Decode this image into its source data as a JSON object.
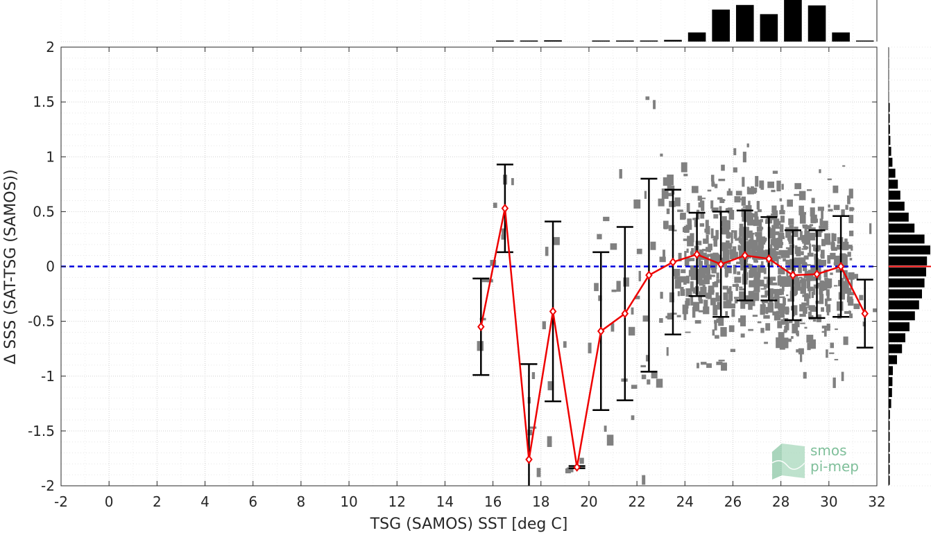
{
  "chart_data": {
    "type": "scatter",
    "xlabel": "TSG (SAMOS) SST [deg C]",
    "ylabel": "Δ SSS (SAT-TSG (SAMOS))",
    "xlim": [
      -2,
      32
    ],
    "ylim": [
      -2,
      2
    ],
    "x_ticks": [
      "-2",
      "0",
      "2",
      "4",
      "6",
      "8",
      "10",
      "12",
      "14",
      "16",
      "18",
      "20",
      "22",
      "24",
      "26",
      "28",
      "30",
      "32"
    ],
    "y_ticks": [
      "2",
      "1.5",
      "1",
      "0.5",
      "0",
      "-0.5",
      "-1",
      "-1.5",
      "-2"
    ],
    "grid": true,
    "zero_line": {
      "y": 0,
      "color": "#0000dd",
      "style": "dashed"
    },
    "binned_mean": {
      "color": "#ee0000",
      "x": [
        15.5,
        16.5,
        17.5,
        18.5,
        19.5,
        20.5,
        21.5,
        22.5,
        23.5,
        24.5,
        25.5,
        26.5,
        27.5,
        28.5,
        29.5,
        30.5,
        31.5
      ],
      "mean": [
        -0.55,
        0.53,
        -1.76,
        -0.41,
        -1.83,
        -0.59,
        -0.43,
        -0.08,
        0.04,
        0.11,
        0.02,
        0.1,
        0.07,
        -0.08,
        -0.07,
        0.0,
        -0.43
      ],
      "std": [
        0.44,
        0.4,
        0.87,
        0.82,
        0.01,
        0.72,
        0.79,
        0.88,
        0.66,
        0.38,
        0.48,
        0.41,
        0.38,
        0.41,
        0.4,
        0.46,
        0.31
      ]
    },
    "scatter_color": "#808080",
    "top_histogram": {
      "x": [
        16.5,
        17.5,
        18.5,
        20.5,
        21.5,
        22.5,
        23.5,
        24.5,
        25.5,
        26.5,
        27.5,
        28.5,
        29.5,
        30.5,
        31.5
      ],
      "count": [
        0.01,
        0.01,
        0.03,
        0.01,
        0.01,
        0.02,
        0.04,
        0.22,
        0.77,
        0.88,
        0.66,
        1.0,
        0.87,
        0.22,
        0.02
      ]
    },
    "right_histogram": {
      "y": [
        1.45,
        1.35,
        1.25,
        1.15,
        1.05,
        0.95,
        0.85,
        0.75,
        0.65,
        0.55,
        0.45,
        0.35,
        0.25,
        0.15,
        0.05,
        -0.05,
        -0.15,
        -0.25,
        -0.35,
        -0.45,
        -0.55,
        -0.65,
        -0.75,
        -0.85,
        -0.95,
        -1.05,
        -1.15,
        -1.25,
        -1.35,
        -1.45,
        -1.55,
        -1.65,
        -1.75,
        -1.85,
        -1.95
      ],
      "count": [
        0.02,
        0.02,
        0.03,
        0.04,
        0.06,
        0.09,
        0.16,
        0.22,
        0.28,
        0.38,
        0.48,
        0.62,
        0.86,
        1.0,
        0.92,
        0.9,
        0.86,
        0.8,
        0.73,
        0.63,
        0.5,
        0.4,
        0.32,
        0.2,
        0.1,
        0.09,
        0.08,
        0.06,
        0.03,
        0.02,
        0.02,
        0.01,
        0.01,
        0.01,
        0.01
      ]
    }
  },
  "logo": {
    "line1": "smos",
    "line2": "pi-mep"
  }
}
